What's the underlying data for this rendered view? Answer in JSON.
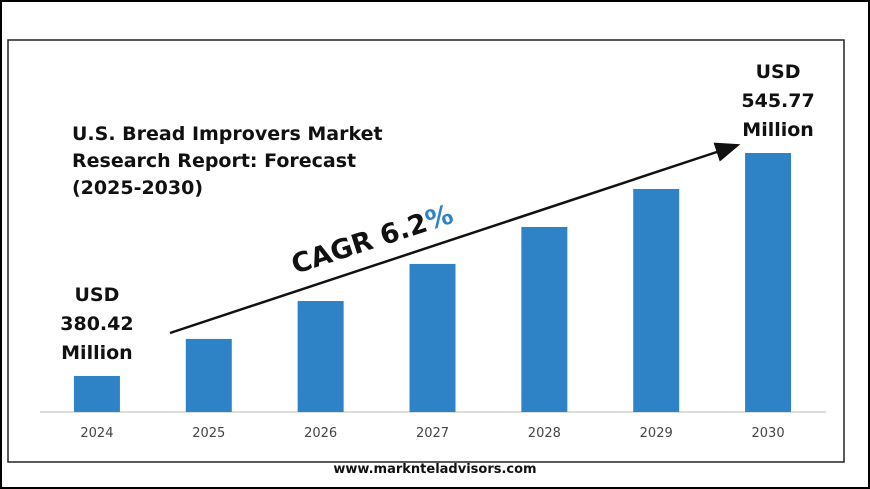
{
  "chart_data": {
    "type": "bar",
    "title": "U.S. Bread Improvers Market\nResearch Report: Forecast\n(2025-2030)",
    "categories": [
      "2024",
      "2025",
      "2026",
      "2027",
      "2028",
      "2029",
      "2030"
    ],
    "values": [
      380.42,
      407.9,
      436.0,
      463.5,
      490.9,
      519.1,
      545.77
    ],
    "value_labels": [
      "USD\n380.42\nMillion",
      null,
      null,
      null,
      null,
      null,
      "USD\n545.77\nMillion"
    ],
    "color": "#2e83c6",
    "ylim": [
      353.7,
      545.77
    ],
    "annotation": {
      "text": "CAGR 6.2",
      "suffix": "%"
    },
    "source": "www.marknteladvisors.com"
  }
}
